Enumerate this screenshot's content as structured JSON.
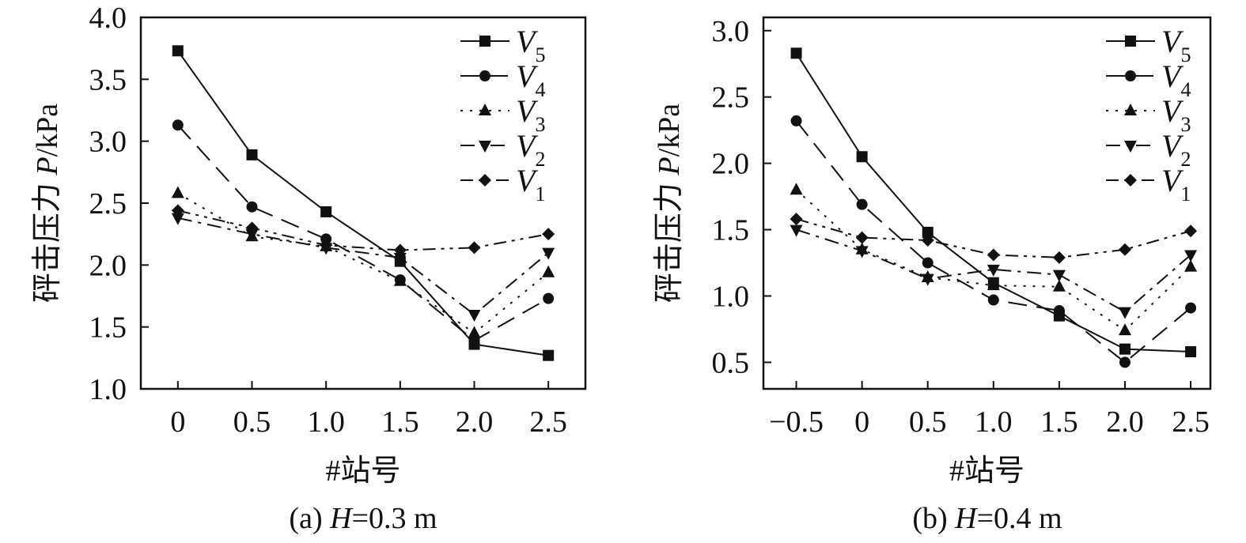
{
  "chart_data": [
    {
      "type": "line",
      "caption_prefix": "(a) ",
      "caption_var": "H",
      "caption_suffix": "=0.3 m",
      "xlabel": "#站号",
      "ylabel_prefix": "砰击压力 ",
      "ylabel_var": "P",
      "ylabel_suffix": "/kPa",
      "x": [
        0,
        0.5,
        1.0,
        1.5,
        2.0,
        2.5
      ],
      "x_tick_labels": [
        "0",
        "0.5",
        "1.0",
        "1.5",
        "2.0",
        "2.5"
      ],
      "xlim": [
        -0.25,
        2.75
      ],
      "ylim": [
        1.0,
        4.0
      ],
      "y_ticks": [
        1.0,
        1.5,
        2.0,
        2.5,
        3.0,
        3.5,
        4.0
      ],
      "y_tick_labels": [
        "1.0",
        "1.5",
        "2.0",
        "2.5",
        "3.0",
        "3.5",
        "4.0"
      ],
      "legend_position": "top-right",
      "series": [
        {
          "name": "V",
          "sub": "5",
          "marker": "square",
          "dash": "solid",
          "values": [
            3.73,
            2.89,
            2.43,
            2.03,
            1.36,
            1.27
          ]
        },
        {
          "name": "V",
          "sub": "4",
          "marker": "circle",
          "dash": "longdash",
          "values": [
            3.13,
            2.47,
            2.21,
            1.88,
            1.39,
            1.73
          ]
        },
        {
          "name": "V",
          "sub": "3",
          "marker": "triangle-up",
          "dash": "dotted",
          "values": [
            2.58,
            2.23,
            2.15,
            1.87,
            1.45,
            1.94
          ]
        },
        {
          "name": "V",
          "sub": "2",
          "marker": "triangle-down",
          "dash": "dashdot",
          "values": [
            2.38,
            2.25,
            2.14,
            2.06,
            1.6,
            2.1
          ]
        },
        {
          "name": "V",
          "sub": "1",
          "marker": "diamond",
          "dash": "dashdotdot",
          "values": [
            2.44,
            2.3,
            2.16,
            2.12,
            2.14,
            2.25
          ]
        }
      ]
    },
    {
      "type": "line",
      "caption_prefix": "(b) ",
      "caption_var": "H",
      "caption_suffix": "=0.4 m",
      "xlabel": "#站号",
      "ylabel_prefix": "砰击压力 ",
      "ylabel_var": "P",
      "ylabel_suffix": "/kPa",
      "x": [
        -0.5,
        0,
        0.5,
        1.0,
        1.5,
        2.0,
        2.5
      ],
      "x_tick_labels": [
        "−0.5",
        "0",
        "0.5",
        "1.0",
        "1.5",
        "2.0",
        "2.5"
      ],
      "xlim": [
        -0.75,
        2.65
      ],
      "ylim": [
        0.3,
        3.1
      ],
      "y_ticks": [
        0.5,
        1.0,
        1.5,
        2.0,
        2.5,
        3.0
      ],
      "y_tick_labels": [
        "0.5",
        "1.0",
        "1.5",
        "2.0",
        "2.5",
        "3.0"
      ],
      "legend_position": "top-right",
      "series": [
        {
          "name": "V",
          "sub": "5",
          "marker": "square",
          "dash": "solid",
          "values": [
            2.83,
            2.05,
            1.48,
            1.1,
            0.85,
            0.6,
            0.58
          ]
        },
        {
          "name": "V",
          "sub": "4",
          "marker": "circle",
          "dash": "longdash",
          "values": [
            2.32,
            1.69,
            1.25,
            0.97,
            0.89,
            0.5,
            0.91
          ]
        },
        {
          "name": "V",
          "sub": "3",
          "marker": "triangle-up",
          "dash": "dotted",
          "values": [
            1.8,
            1.35,
            1.14,
            1.08,
            1.07,
            0.74,
            1.22
          ]
        },
        {
          "name": "V",
          "sub": "2",
          "marker": "triangle-down",
          "dash": "dashdot",
          "values": [
            1.5,
            1.34,
            1.13,
            1.2,
            1.16,
            0.88,
            1.31
          ]
        },
        {
          "name": "V",
          "sub": "1",
          "marker": "diamond",
          "dash": "dashdotdot",
          "values": [
            1.58,
            1.44,
            1.42,
            1.31,
            1.29,
            1.35,
            1.49
          ]
        }
      ]
    }
  ]
}
